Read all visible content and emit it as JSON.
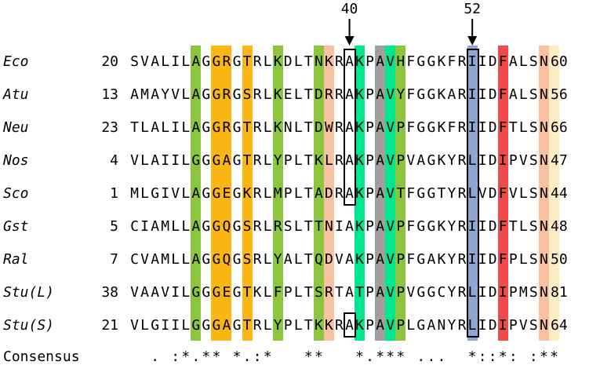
{
  "position_markers": [
    {
      "label": "40",
      "column": 21
    },
    {
      "label": "52",
      "column": 33
    }
  ],
  "sequences": [
    {
      "species": "Eco",
      "start": "20",
      "sequence": "SVALILAGGRGTRLKDLTNKRAKPAVHFGGKFRIIDFALSN",
      "end": "60"
    },
    {
      "species": "Atu",
      "start": "13",
      "sequence": "AMAYVLAGGRGSRLKELTDRRAKPAVYFGGKARIIDFALSN",
      "end": "56"
    },
    {
      "species": "Neu",
      "start": "23",
      "sequence": "TLALILAGGRGTRLKNLTDWRAKPAVPFGGKFRIIDFTLSN",
      "end": "66"
    },
    {
      "species": "Nos",
      "start": "4",
      "sequence": "VLAIILGGGAGTRLYPLTKLRAKPAVPVAGKYRLIDIPVSN",
      "end": "47"
    },
    {
      "species": "Sco",
      "start": "1",
      "sequence": "MLGIVLAGGEGKRLMPLTADRAKPAVTFGGTYRLVDFVLSN",
      "end": "44"
    },
    {
      "species": "Gst",
      "start": "5",
      "sequence": "CIAMLLAGGQGSRLRSLTTNIAKPAVPFGGKYRIIDFTLSN",
      "end": "48"
    },
    {
      "species": "Ral",
      "start": "7",
      "sequence": "CVAMLLAGGQGSRLYALTQDVAKPAVPFGAKYRIIDFPLSN",
      "end": "50"
    },
    {
      "species": "Stu(L)",
      "start": "38",
      "sequence": "VAAVILGGGEGTKLFPLTSRTATPAVPVGGCYRLIDIPMSN",
      "end": "81"
    },
    {
      "species": "Stu(S)",
      "start": "21",
      "sequence": "VLGIILGGGAGTRLYPLTKKRAKPAVPLGANYRLIDIPVSN",
      "end": "64"
    }
  ],
  "consensus": {
    "label": "Consensus",
    "line": "  . :*.** *.:* ** *.*** ... *::*: :**"
  },
  "column_highlights": [
    {
      "column": 6,
      "color": "#8cc63f"
    },
    {
      "column": 8,
      "color": "#fbb614"
    },
    {
      "column": 9,
      "color": "#fbb614"
    },
    {
      "column": 11,
      "color": "#fbb614"
    },
    {
      "column": 14,
      "color": "#8cc63f"
    },
    {
      "column": 18,
      "color": "#8cc63f"
    },
    {
      "column": 19,
      "color": "#f8c2a2"
    },
    {
      "column": 22,
      "color": "#00e88f"
    },
    {
      "column": 24,
      "color": "#a39e9e"
    },
    {
      "column": 25,
      "color": "#00e88f"
    },
    {
      "column": 26,
      "color": "#8cc63f"
    },
    {
      "column": 33,
      "color": "#8fa6d4"
    },
    {
      "column": 36,
      "color": "#f04b4b"
    },
    {
      "column": 40,
      "color": "#f8c2a2"
    },
    {
      "column": 41,
      "color": "#fbecc4"
    }
  ],
  "boxed_cells": [
    {
      "column": 21,
      "rows": "1-5"
    },
    {
      "column": 21,
      "rows": "9"
    },
    {
      "column": 33,
      "rows": "1-9"
    }
  ]
}
